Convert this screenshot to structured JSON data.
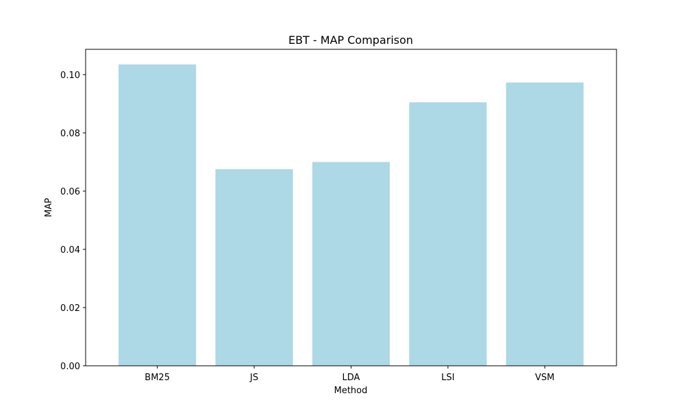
{
  "chart_data": {
    "type": "bar",
    "title": "EBT - MAP Comparison",
    "xlabel": "Method",
    "ylabel": "MAP",
    "categories": [
      "BM25",
      "JS",
      "LDA",
      "LSI",
      "VSM"
    ],
    "values": [
      0.1035,
      0.0675,
      0.07,
      0.0905,
      0.0973
    ],
    "ylim": [
      0,
      0.1087
    ],
    "yticks": [
      0.0,
      0.02,
      0.04,
      0.06,
      0.08,
      0.1
    ],
    "ytick_labels": [
      "0.00",
      "0.02",
      "0.04",
      "0.06",
      "0.08",
      "0.10"
    ],
    "bar_color": "#add8e6",
    "grid": false,
    "legend": false
  }
}
